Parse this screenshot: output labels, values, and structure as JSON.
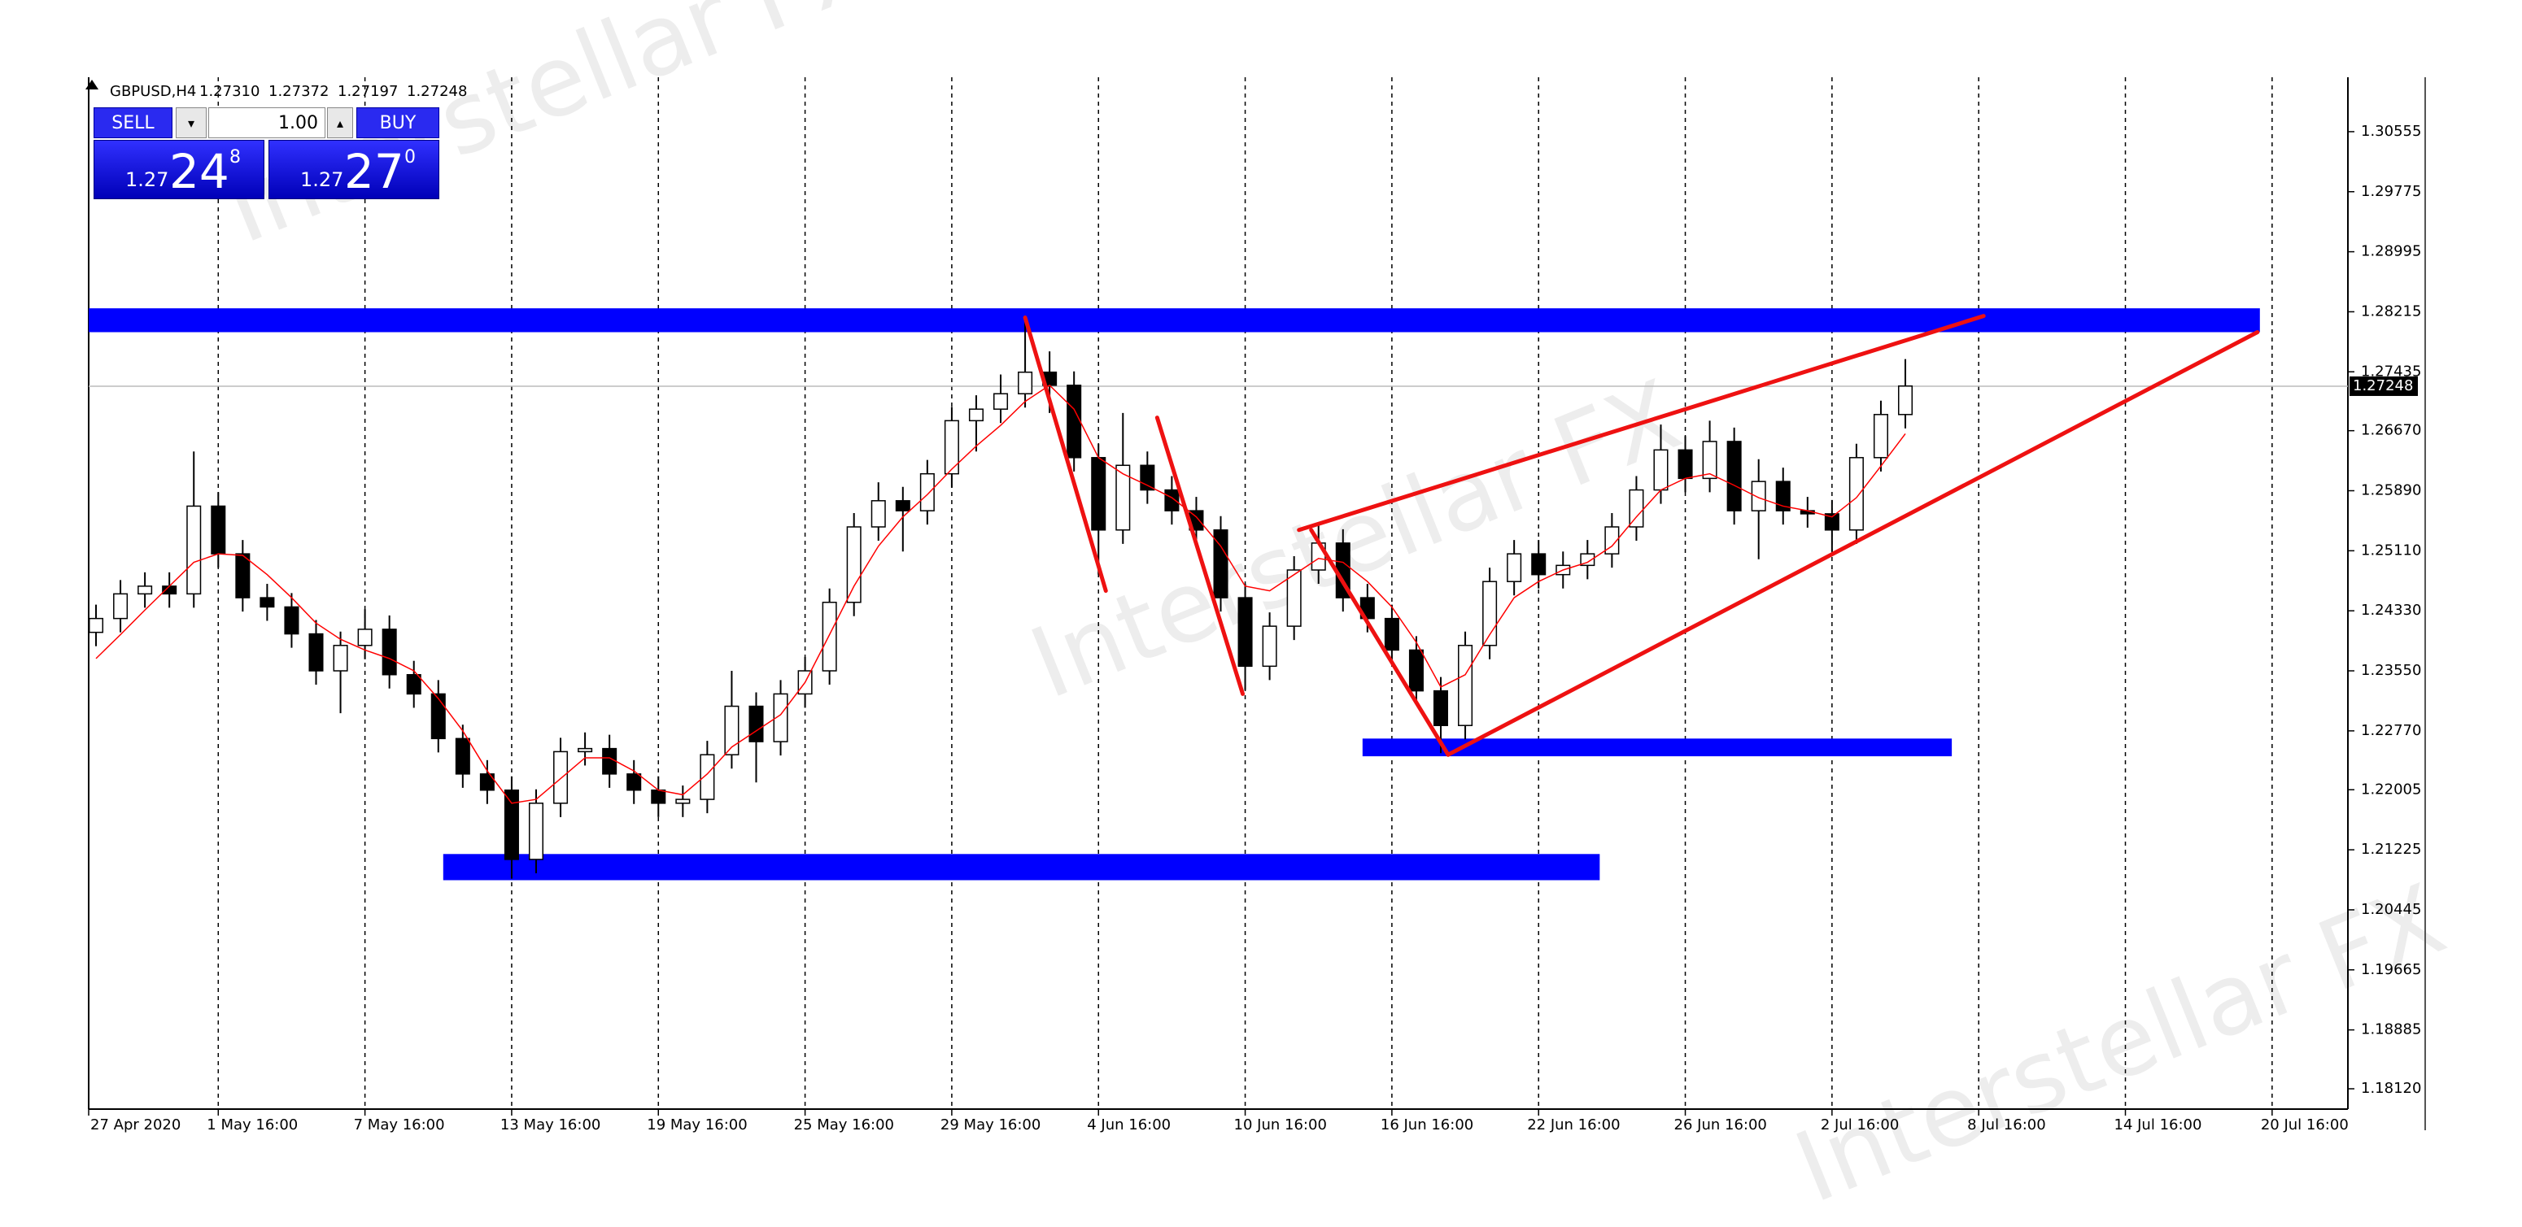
{
  "header": {
    "symbol": "GBPUSD,H4",
    "ohlc": [
      "1.27310",
      "1.27372",
      "1.27197",
      "1.27248"
    ]
  },
  "trade_panel": {
    "sell": "SELL",
    "buy": "BUY",
    "lot": "1.00",
    "bid": {
      "small": "1.27",
      "big": "24",
      "pip": "8"
    },
    "ask": {
      "small": "1.27",
      "big": "27",
      "pip": "0"
    }
  },
  "watermark": "Interstellar FX",
  "chart_data": {
    "type": "candlestick",
    "x": [
      0,
      1,
      2,
      3,
      4,
      5,
      6,
      7,
      8,
      9,
      10,
      11,
      12,
      13,
      14,
      15,
      16,
      17,
      18,
      19,
      20,
      21,
      22,
      23,
      24,
      25,
      26,
      27,
      28,
      29,
      30,
      31,
      32,
      33,
      34,
      35,
      36,
      37,
      38,
      39,
      40,
      41,
      42,
      43,
      44,
      45,
      46,
      47,
      48,
      49,
      50,
      51,
      52,
      53,
      54,
      55,
      56,
      57,
      58,
      59,
      60,
      61,
      62,
      63,
      64,
      65,
      66,
      67,
      68,
      69,
      70,
      71,
      72,
      73,
      74
    ],
    "open": [
      1.2405,
      1.2423,
      1.2455,
      1.2465,
      1.2455,
      1.2569,
      1.2507,
      1.245,
      1.2438,
      1.2403,
      1.2355,
      1.2388,
      1.2409,
      1.235,
      1.2325,
      1.2267,
      1.2221,
      1.22,
      1.211,
      1.2183,
      1.225,
      1.2254,
      1.2221,
      1.22,
      1.2183,
      1.2188,
      1.2246,
      1.2309,
      1.2263,
      1.2325,
      1.2355,
      1.2444,
      1.2542,
      1.2576,
      1.2563,
      1.2611,
      1.268,
      1.2695,
      1.2715,
      1.2743,
      1.2726,
      1.2632,
      1.2538,
      1.2622,
      1.259,
      1.2563,
      1.2538,
      1.245,
      1.2361,
      1.2413,
      1.2486,
      1.2521,
      1.245,
      1.2423,
      1.2382,
      1.2329,
      1.2284,
      1.2388,
      1.2471,
      1.2507,
      1.248,
      1.2492,
      1.2507,
      1.2542,
      1.259,
      1.2642,
      1.2605,
      1.2653,
      1.2563,
      1.2601,
      1.2563,
      1.2559,
      1.2538,
      1.2632,
      1.2688
    ],
    "high": [
      1.2441,
      1.2473,
      1.2483,
      1.2483,
      1.264,
      1.2587,
      1.2525,
      1.2468,
      1.2456,
      1.2421,
      1.2406,
      1.2435,
      1.2427,
      1.2368,
      1.2343,
      1.2285,
      1.2239,
      1.2218,
      1.2201,
      1.2268,
      1.2275,
      1.2272,
      1.2239,
      1.2218,
      1.2206,
      1.2264,
      1.2355,
      1.2327,
      1.2343,
      1.2373,
      1.2462,
      1.256,
      1.26,
      1.2594,
      1.2629,
      1.2698,
      1.2713,
      1.274,
      1.2813,
      1.277,
      1.2744,
      1.265,
      1.269,
      1.264,
      1.2608,
      1.2581,
      1.2556,
      1.2468,
      1.2431,
      1.2504,
      1.2545,
      1.2539,
      1.2468,
      1.2441,
      1.24,
      1.2347,
      1.2406,
      1.2489,
      1.2525,
      1.2525,
      1.251,
      1.2525,
      1.256,
      1.2608,
      1.2675,
      1.266,
      1.268,
      1.2671,
      1.263,
      1.2619,
      1.2581,
      1.2577,
      1.265,
      1.2706,
      1.276
    ],
    "low": [
      1.2387,
      1.2405,
      1.2437,
      1.2437,
      1.2437,
      1.2489,
      1.2432,
      1.242,
      1.2385,
      1.2337,
      1.23,
      1.237,
      1.2332,
      1.2307,
      1.2249,
      1.2203,
      1.2182,
      1.2085,
      1.2092,
      1.2165,
      1.2232,
      1.2203,
      1.2182,
      1.2165,
      1.2165,
      1.217,
      1.2228,
      1.221,
      1.2245,
      1.2307,
      1.2337,
      1.2426,
      1.2524,
      1.251,
      1.2545,
      1.2593,
      1.264,
      1.2677,
      1.2697,
      1.269,
      1.2614,
      1.248,
      1.252,
      1.2572,
      1.2545,
      1.252,
      1.2432,
      1.233,
      1.2343,
      1.2395,
      1.2468,
      1.2432,
      1.2405,
      1.2364,
      1.2311,
      1.2248,
      1.2266,
      1.237,
      1.2453,
      1.2462,
      1.2462,
      1.2474,
      1.2489,
      1.2524,
      1.2572,
      1.2587,
      1.2587,
      1.2545,
      1.25,
      1.2545,
      1.2541,
      1.251,
      1.252,
      1.2614,
      1.267
    ],
    "close": [
      1.2423,
      1.2455,
      1.2465,
      1.2455,
      1.2569,
      1.2507,
      1.245,
      1.2438,
      1.2403,
      1.2355,
      1.2388,
      1.2409,
      1.235,
      1.2325,
      1.2267,
      1.2221,
      1.22,
      1.211,
      1.2183,
      1.225,
      1.2254,
      1.2221,
      1.22,
      1.2183,
      1.2188,
      1.2246,
      1.2309,
      1.2263,
      1.2325,
      1.2355,
      1.2444,
      1.2542,
      1.2576,
      1.2563,
      1.2611,
      1.268,
      1.2695,
      1.2715,
      1.2743,
      1.2726,
      1.2632,
      1.2538,
      1.2622,
      1.259,
      1.2563,
      1.2538,
      1.245,
      1.2361,
      1.2413,
      1.2486,
      1.2521,
      1.245,
      1.2423,
      1.2382,
      1.2329,
      1.2284,
      1.2388,
      1.2471,
      1.2507,
      1.248,
      1.2492,
      1.2507,
      1.2542,
      1.259,
      1.2642,
      1.2605,
      1.2653,
      1.2563,
      1.2601,
      1.2563,
      1.2559,
      1.2538,
      1.2632,
      1.2688,
      1.2725
    ],
    "up_fill": "#ffffff",
    "candle_color": "#000000",
    "ma": {
      "color": "#ff0000",
      "values": [
        1.2371,
        1.2402,
        1.2434,
        1.2465,
        1.2496,
        1.2507,
        1.2505,
        1.248,
        1.245,
        1.2417,
        1.2396,
        1.2382,
        1.2371,
        1.2355,
        1.2319,
        1.2277,
        1.2225,
        1.2183,
        1.2188,
        1.2215,
        1.2242,
        1.2242,
        1.2225,
        1.22,
        1.2194,
        1.2221,
        1.2256,
        1.2277,
        1.2298,
        1.234,
        1.2402,
        1.2465,
        1.2517,
        1.2555,
        1.2584,
        1.2617,
        1.2647,
        1.2674,
        1.2705,
        1.2726,
        1.2695,
        1.2632,
        1.2611,
        1.2596,
        1.258,
        1.2555,
        1.2517,
        1.2465,
        1.2459,
        1.248,
        1.2501,
        1.2496,
        1.2471,
        1.2438,
        1.2392,
        1.2334,
        1.235,
        1.2402,
        1.245,
        1.2471,
        1.2486,
        1.2496,
        1.2517,
        1.2555,
        1.259,
        1.2605,
        1.2611,
        1.2596,
        1.258,
        1.2569,
        1.2563,
        1.2555,
        1.258,
        1.2621,
        1.2663
      ]
    },
    "zone_color": "#0000ff",
    "zones": [
      {
        "x": [
          -0.3,
          88.5
        ],
        "y": [
          1.2795,
          1.2826
        ]
      },
      {
        "x": [
          51.8,
          75.9
        ],
        "y": [
          1.2244,
          1.2267
        ]
      },
      {
        "x": [
          14.2,
          61.5
        ],
        "y": [
          1.2083,
          1.2117
        ]
      }
    ],
    "trendline_color": "#ee1111",
    "trendlines": [
      {
        "x": [
          38.0,
          41.3
        ],
        "y": [
          1.2814,
          1.2459
        ]
      },
      {
        "x": [
          43.4,
          46.9
        ],
        "y": [
          1.2684,
          1.2325
        ]
      },
      {
        "x": [
          49.7,
          55.3
        ],
        "y": [
          1.2538,
          1.2246
        ]
      },
      {
        "x": [
          49.2,
          77.2
        ],
        "y": [
          1.2538,
          1.2816
        ]
      },
      {
        "x": [
          55.3,
          88.4
        ],
        "y": [
          1.2246,
          1.2795
        ]
      }
    ],
    "current_price": {
      "value": 1.27248,
      "label": "1.27248"
    },
    "xlim": [
      -0.3,
      92.1
    ],
    "ylim": [
      1.17856,
      1.31262
    ],
    "xgrid": true,
    "ygrid": false,
    "xticks": [
      {
        "value": -0.3,
        "label": "27 Apr 2020"
      },
      {
        "value": 5,
        "label": "1 May 16:00"
      },
      {
        "value": 11,
        "label": "7 May 16:00"
      },
      {
        "value": 17,
        "label": "13 May 16:00"
      },
      {
        "value": 23,
        "label": "19 May 16:00"
      },
      {
        "value": 29,
        "label": "25 May 16:00"
      },
      {
        "value": 35,
        "label": "29 May 16:00"
      },
      {
        "value": 41,
        "label": "4 Jun 16:00"
      },
      {
        "value": 47,
        "label": "10 Jun 16:00"
      },
      {
        "value": 53,
        "label": "16 Jun 16:00"
      },
      {
        "value": 59,
        "label": "22 Jun 16:00"
      },
      {
        "value": 65,
        "label": "26 Jun 16:00"
      },
      {
        "value": 71,
        "label": "2 Jul 16:00"
      },
      {
        "value": 77,
        "label": "8 Jul 16:00"
      },
      {
        "value": 83,
        "label": "14 Jul 16:00"
      },
      {
        "value": 89,
        "label": "20 Jul 16:00"
      }
    ],
    "yticks": [
      1.30555,
      1.29775,
      1.28995,
      1.28215,
      1.27435,
      {
        "value": 1.2667,
        "label": "1.26670"
      },
      {
        "value": 1.2589,
        "label": "1.25890"
      },
      {
        "value": 1.2511,
        "label": "1.25110"
      },
      {
        "value": 1.2433,
        "label": "1.24330"
      },
      {
        "value": 1.2355,
        "label": "1.23550"
      },
      {
        "value": 1.2277,
        "label": "1.22770"
      },
      1.22005,
      1.21225,
      1.20445,
      1.19665,
      1.18885,
      {
        "value": 1.1812,
        "label": "1.18120"
      }
    ]
  }
}
